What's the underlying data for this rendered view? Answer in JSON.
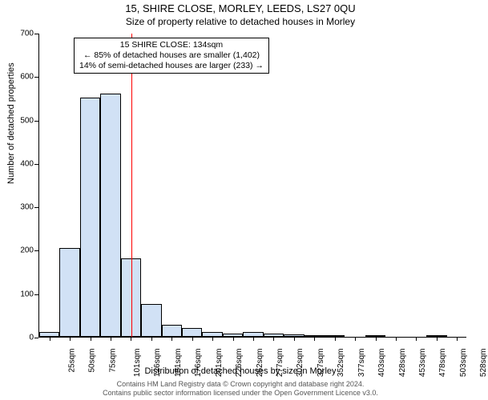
{
  "title": "15, SHIRE CLOSE, MORLEY, LEEDS, LS27 0QU",
  "subtitle": "Size of property relative to detached houses in Morley",
  "xlabel": "Distribution of detached houses by size in Morley",
  "ylabel": "Number of detached properties",
  "footer_line1": "Contains HM Land Registry data © Crown copyright and database right 2024.",
  "footer_line2": "Contains public sector information licensed under the Open Government Licence v3.0.",
  "chart": {
    "type": "histogram",
    "bar_fill": "#d1e1f5",
    "bar_stroke": "#000000",
    "background": "#ffffff",
    "ylim_max": 700,
    "ytick_step": 100,
    "categories": [
      "25sqm",
      "50sqm",
      "75sqm",
      "101sqm",
      "126sqm",
      "151sqm",
      "176sqm",
      "201sqm",
      "226sqm",
      "252sqm",
      "277sqm",
      "302sqm",
      "327sqm",
      "352sqm",
      "377sqm",
      "403sqm",
      "428sqm",
      "453sqm",
      "478sqm",
      "503sqm",
      "528sqm"
    ],
    "values": [
      12,
      205,
      550,
      560,
      180,
      75,
      27,
      20,
      12,
      8,
      12,
      8,
      6,
      3,
      3,
      0,
      3,
      0,
      0,
      2,
      0
    ],
    "marker": {
      "value_sqm": 134,
      "color": "#ff0000",
      "fractional_x": 0.215
    },
    "annotation": {
      "line1": "15 SHIRE CLOSE: 134sqm",
      "line2": "← 85% of detached houses are smaller (1,402)",
      "line3": "14% of semi-detached houses are larger (233) →"
    }
  }
}
